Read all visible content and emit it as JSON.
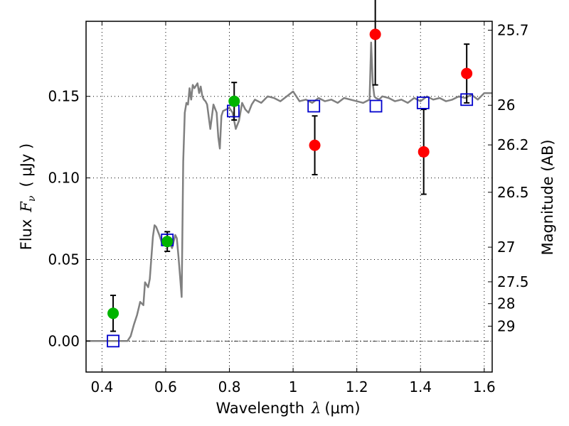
{
  "chart_data": {
    "type": "scatter",
    "xlabel_text": "Wavelength",
    "xlabel_symbol": "λ",
    "xlabel_unit": "(μm)",
    "ylabel_text": "Flux",
    "ylabel_symbol": "F",
    "ylabel_subscript": "ν",
    "ylabel_unit": "( μJy )",
    "y2label": "Magnitude (AB)",
    "xlim": [
      0.35,
      1.625
    ],
    "ylim": [
      -0.019,
      0.196
    ],
    "x_ticks": [
      0.4,
      0.6,
      0.8,
      1.0,
      1.2,
      1.4,
      1.6
    ],
    "x_tick_labels": [
      "0.4",
      "0.6",
      "0.8",
      "1",
      "1.2",
      "1.4",
      "1.6"
    ],
    "y_ticks": [
      0.0,
      0.05,
      0.1,
      0.15
    ],
    "y_tick_labels": [
      "0.00",
      "0.05",
      "0.10",
      "0.15"
    ],
    "y2_tick_labels": [
      "25.7",
      "26",
      "26.2",
      "26.5",
      "27",
      "27.5",
      "28",
      "29"
    ],
    "grid": true,
    "zero_line": true,
    "colors": {
      "model": "#808080",
      "green": "#00b400",
      "red": "#ff0000",
      "box": "#0000cc",
      "errorbar": "#000000"
    },
    "model_spectrum": {
      "x": [
        0.35,
        0.48,
        0.49,
        0.5,
        0.51,
        0.52,
        0.53,
        0.535,
        0.545,
        0.55,
        0.56,
        0.565,
        0.57,
        0.58,
        0.59,
        0.6,
        0.61,
        0.62,
        0.63,
        0.635,
        0.64,
        0.645,
        0.65,
        0.655,
        0.66,
        0.665,
        0.67,
        0.675,
        0.68,
        0.685,
        0.69,
        0.7,
        0.705,
        0.71,
        0.715,
        0.72,
        0.725,
        0.73,
        0.74,
        0.75,
        0.76,
        0.765,
        0.77,
        0.775,
        0.78,
        0.79,
        0.8,
        0.81,
        0.82,
        0.83,
        0.84,
        0.85,
        0.86,
        0.87,
        0.88,
        0.9,
        0.92,
        0.94,
        0.96,
        0.98,
        1.0,
        1.02,
        1.04,
        1.06,
        1.08,
        1.1,
        1.12,
        1.14,
        1.16,
        1.18,
        1.2,
        1.22,
        1.24,
        1.245,
        1.25,
        1.255,
        1.26,
        1.27,
        1.28,
        1.3,
        1.32,
        1.34,
        1.36,
        1.38,
        1.4,
        1.42,
        1.44,
        1.46,
        1.48,
        1.5,
        1.52,
        1.54,
        1.56,
        1.58,
        1.6,
        1.625
      ],
      "y": [
        0.0,
        0.0,
        0.003,
        0.01,
        0.016,
        0.024,
        0.022,
        0.036,
        0.033,
        0.038,
        0.064,
        0.071,
        0.07,
        0.065,
        0.059,
        0.062,
        0.061,
        0.057,
        0.065,
        0.063,
        0.052,
        0.04,
        0.027,
        0.11,
        0.14,
        0.146,
        0.145,
        0.155,
        0.148,
        0.157,
        0.155,
        0.158,
        0.152,
        0.156,
        0.15,
        0.148,
        0.147,
        0.145,
        0.13,
        0.145,
        0.14,
        0.125,
        0.118,
        0.138,
        0.141,
        0.142,
        0.143,
        0.14,
        0.13,
        0.135,
        0.146,
        0.142,
        0.14,
        0.145,
        0.148,
        0.146,
        0.15,
        0.149,
        0.147,
        0.15,
        0.153,
        0.147,
        0.148,
        0.146,
        0.149,
        0.147,
        0.148,
        0.146,
        0.149,
        0.148,
        0.147,
        0.146,
        0.148,
        0.183,
        0.158,
        0.15,
        0.149,
        0.148,
        0.15,
        0.149,
        0.147,
        0.148,
        0.146,
        0.149,
        0.147,
        0.15,
        0.148,
        0.149,
        0.147,
        0.148,
        0.15,
        0.149,
        0.151,
        0.148,
        0.152,
        0.152
      ]
    },
    "synthetic_boxes": {
      "x": [
        0.435,
        0.605,
        0.812,
        1.065,
        1.26,
        1.408,
        1.545
      ],
      "y": [
        0.0,
        0.062,
        0.141,
        0.144,
        0.144,
        0.146,
        0.148
      ]
    },
    "observed_green": [
      {
        "x": 0.435,
        "y": 0.017,
        "yerr": 0.011
      },
      {
        "x": 0.605,
        "y": 0.061,
        "yerr": 0.006
      },
      {
        "x": 0.815,
        "y": 0.147,
        "yerr": 0.0115
      }
    ],
    "observed_red": [
      {
        "x": 1.068,
        "y": 0.12,
        "yerr": 0.018
      },
      {
        "x": 1.258,
        "y": 0.188,
        "yerr": 0.031
      },
      {
        "x": 1.41,
        "y": 0.116,
        "yerr": 0.026
      },
      {
        "x": 1.545,
        "y": 0.164,
        "yerr": 0.018
      }
    ]
  }
}
